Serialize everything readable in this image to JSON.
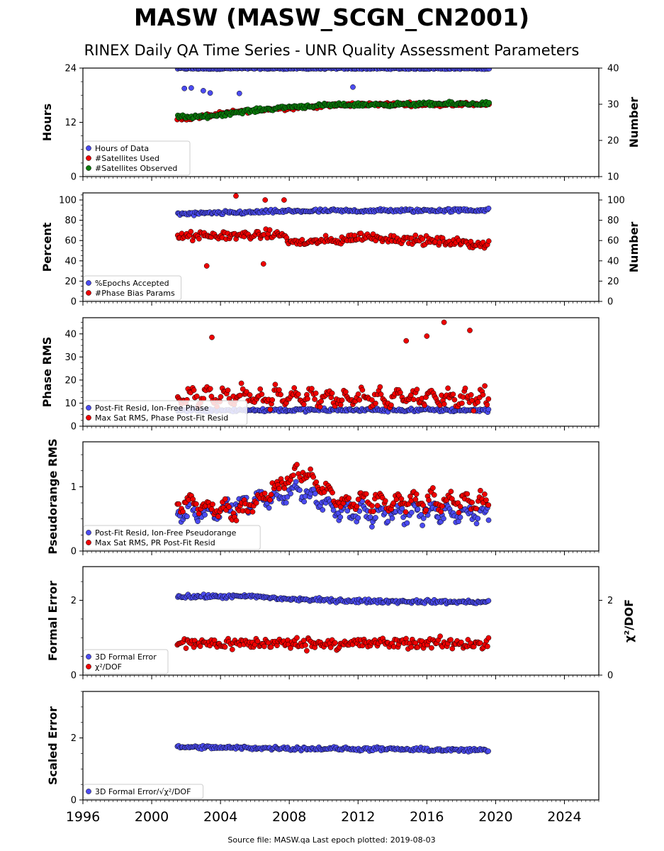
{
  "title": "MASW (MASW_SCGN_CN2001)",
  "subtitle": "RINEX Daily QA Time Series - UNR Quality Assessment Parameters",
  "footer": "Source file: MASW.qa Last epoch plotted: 2019-08-03",
  "colors": {
    "blue": "#4b4bf0",
    "red": "#ee0000",
    "green": "#0a7a0a",
    "edge": "#000000"
  },
  "chart_data": [
    {
      "type": "scatter",
      "ylabel": "Hours",
      "ylabel_right": "Number",
      "ylim": [
        0,
        24
      ],
      "ylim_right": [
        10,
        40
      ],
      "yticks": [
        0,
        12,
        24
      ],
      "yticks_right": [
        10,
        20,
        30,
        40
      ],
      "legend": "lower-left",
      "series": [
        {
          "name": "Hours of Data",
          "color": "#4b4bf0",
          "axis": "left",
          "x_range": [
            2001.5,
            2019.6
          ],
          "base": 23.9,
          "spread": 0.3,
          "outliers": [
            [
              2001.9,
              19.5
            ],
            [
              2002.3,
              19.6
            ],
            [
              2003.0,
              19.0
            ],
            [
              2005.1,
              18.4
            ],
            [
              2011.7,
              19.8
            ],
            [
              2003.4,
              18.5
            ]
          ]
        },
        {
          "name": "#Satellites Used",
          "color": "#ee0000",
          "axis": "right",
          "x_range": [
            2001.5,
            2019.6
          ],
          "values": [
            [
              2002,
              26
            ],
            [
              2005,
              28
            ],
            [
              2008,
              29
            ],
            [
              2012,
              30
            ],
            [
              2019.5,
              30
            ]
          ]
        },
        {
          "name": "#Satellites Observed",
          "color": "#0a7a0a",
          "axis": "right",
          "x_range": [
            2001.5,
            2019.6
          ],
          "values": [
            [
              2001.5,
              26.5
            ],
            [
              2003,
              26.5
            ],
            [
              2005,
              27.8
            ],
            [
              2008,
              29.3
            ],
            [
              2011,
              29.8
            ],
            [
              2019.5,
              30.2
            ]
          ]
        }
      ]
    },
    {
      "type": "scatter",
      "ylabel": "Percent",
      "ylabel_right": "Number",
      "ylim": [
        0,
        107
      ],
      "yticks": [
        0,
        20,
        40,
        60,
        80,
        100
      ],
      "yticks_right": [
        0,
        20,
        40,
        60,
        80,
        100
      ],
      "legend": "lower-left",
      "series": [
        {
          "name": "%Epochs Accepted",
          "color": "#4b4bf0",
          "x_range": [
            2001.5,
            2019.6
          ],
          "values": [
            [
              2001.5,
              86
            ],
            [
              2008,
              89
            ],
            [
              2019.5,
              90
            ]
          ]
        },
        {
          "name": "#Phase Bias Params",
          "color": "#ee0000",
          "x_range": [
            2001.5,
            2019.6
          ],
          "values": [
            [
              2001.5,
              64
            ],
            [
              2007.7,
              66
            ],
            [
              2008,
              58
            ],
            [
              2011,
              60
            ],
            [
              2012,
              64
            ],
            [
              2019.5,
              56
            ]
          ],
          "outliers": [
            [
              2004.9,
              104
            ],
            [
              2007.7,
              100
            ],
            [
              2006.6,
              100
            ],
            [
              2003.2,
              35
            ],
            [
              2006.5,
              37
            ]
          ]
        }
      ]
    },
    {
      "type": "scatter",
      "ylabel": "Phase RMS",
      "ylim": [
        0,
        47
      ],
      "yticks": [
        0,
        10,
        20,
        30,
        40
      ],
      "legend": "lower-left",
      "series": [
        {
          "name": "Post-Fit Resid, Ion-Free Phase",
          "color": "#4b4bf0",
          "x_range": [
            2001.5,
            2019.6
          ],
          "values": [
            [
              2001.5,
              7
            ],
            [
              2019.5,
              7
            ]
          ]
        },
        {
          "name": "Max Sat RMS, Phase Post-Fit Resid",
          "color": "#ee0000",
          "x_range": [
            2001.5,
            2019.6
          ],
          "values": [
            [
              2001.5,
              13
            ],
            [
              2019.5,
              12
            ]
          ],
          "outliers": [
            [
              2003.5,
              38.5
            ],
            [
              2017.0,
              45
            ],
            [
              2016.0,
              39
            ],
            [
              2018.5,
              41.5
            ],
            [
              2014.8,
              37
            ]
          ]
        }
      ]
    },
    {
      "type": "scatter",
      "ylabel": "Pseudorange RMS",
      "ylim": [
        0,
        1.7
      ],
      "yticks": [
        0,
        1
      ],
      "legend": "lower-left",
      "series": [
        {
          "name": "Post-Fit Resid, Ion-Free Pseudorange",
          "color": "#4b4bf0",
          "x_range": [
            2001.5,
            2019.6
          ],
          "values": [
            [
              2001.5,
              0.6
            ],
            [
              2004,
              0.62
            ],
            [
              2008.5,
              0.95
            ],
            [
              2011,
              0.6
            ],
            [
              2019.5,
              0.6
            ]
          ]
        },
        {
          "name": "Max Sat RMS, PR Post-Fit Resid",
          "color": "#ee0000",
          "x_range": [
            2001.5,
            2019.6
          ],
          "values": [
            [
              2001.5,
              0.78
            ],
            [
              2005,
              0.6
            ],
            [
              2008.7,
              1.25
            ],
            [
              2011,
              0.75
            ],
            [
              2019.5,
              0.78
            ]
          ]
        }
      ]
    },
    {
      "type": "scatter",
      "ylabel": "Formal Error",
      "ylabel_right": "χ²/DOF",
      "ylim": [
        0,
        2.9
      ],
      "yticks": [
        0,
        2
      ],
      "yticks_right": [
        0,
        2
      ],
      "legend": "lower-left",
      "series": [
        {
          "name": "3D Formal Error",
          "color": "#4b4bf0",
          "x_range": [
            2001.5,
            2019.6
          ],
          "values": [
            [
              2001.5,
              2.1
            ],
            [
              2006,
              2.1
            ],
            [
              2008,
              2.03
            ],
            [
              2012,
              1.98
            ],
            [
              2019.5,
              1.95
            ]
          ]
        },
        {
          "name": "χ²/DOF",
          "color": "#ee0000",
          "x_range": [
            2001.5,
            2019.6
          ],
          "values": [
            [
              2001.5,
              0.85
            ],
            [
              2019.5,
              0.85
            ]
          ]
        }
      ]
    },
    {
      "type": "scatter",
      "ylabel": "Scaled Error",
      "ylim": [
        0,
        3.5
      ],
      "yticks": [
        0,
        2
      ],
      "legend": "lower-left",
      "xlim": [
        1996,
        2026
      ],
      "xticks": [
        1996,
        2000,
        2004,
        2008,
        2012,
        2016,
        2020,
        2024
      ],
      "series": [
        {
          "name": "3D Formal Error/√χ²/DOF",
          "color": "#4b4bf0",
          "x_range": [
            2001.5,
            2019.6
          ],
          "values": [
            [
              2001.5,
              1.7
            ],
            [
              2019.5,
              1.6
            ]
          ]
        }
      ]
    }
  ]
}
